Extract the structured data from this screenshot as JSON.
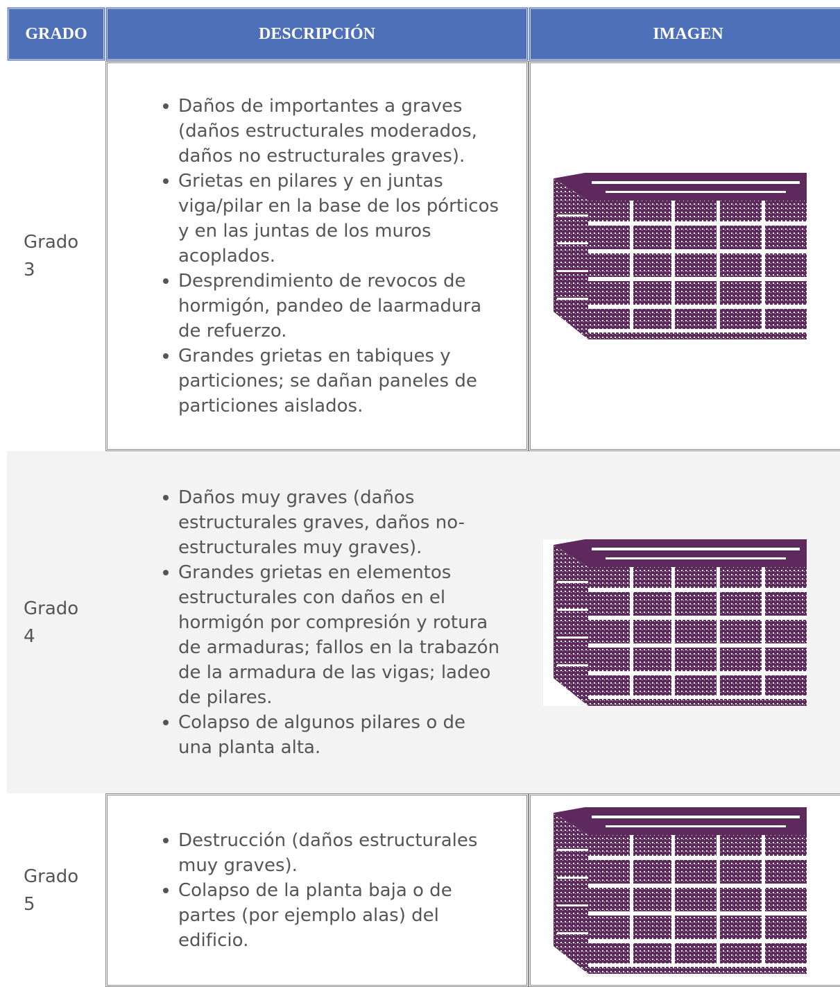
{
  "table": {
    "header": [
      "GRADO",
      "DESCRIPCIÓN",
      "IMAGEN"
    ],
    "rows": [
      {
        "grade": "Grado 3",
        "items": [
          "Daños de importantes a graves (daños estructurales moderados, daños no estructurales graves).",
          "Grietas en pilares y en juntas viga/pilar en la base de los pórticos y en las juntas de los muros acoplados.",
          "Desprendimiento de revocos de hormigón, pandeo de laarmadura de refuerzo.",
          "Grandes grietas en tabiques y particiones; se dañan paneles de particiones aislados."
        ]
      },
      {
        "grade": "Grado 4",
        "items": [
          "Daños muy graves (daños estructurales graves, daños no-estructurales muy graves).",
          "Grandes grietas en elementos estructurales con daños en el hormigón por compresión y rotura de armaduras; fallos en la trabazón de la armadura de las vigas; ladeo de pilares.",
          "Colapso de algunos pilares o de una planta alta."
        ]
      },
      {
        "grade": "Grado 5",
        "items": [
          "Destrucción (daños estructurales muy graves).",
          "Colapso de la planta baja o de partes (por ejemplo alas) del edificio."
        ]
      }
    ]
  }
}
